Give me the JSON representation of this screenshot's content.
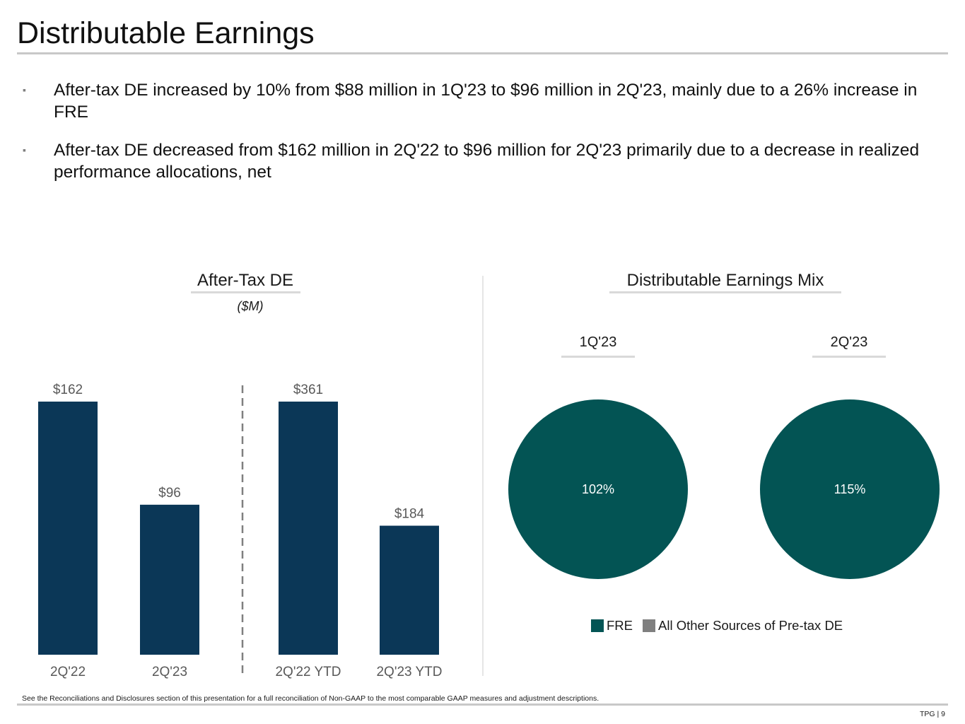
{
  "page": {
    "title": "Distributable Earnings",
    "bullets": [
      "After-tax DE increased by 10% from $88 million in 1Q'23 to $96 million in 2Q'23, mainly due to a 26% increase in FRE",
      "After-tax DE decreased from $162 million in 2Q'22 to $96 million for 2Q'23 primarily due to a decrease in realized performance allocations, net"
    ],
    "bullet_marker": "▪",
    "footnote": "See the Reconciliations and Disclosures section of this presentation for a full reconciliation of Non-GAAP to the most comparable GAAP measures and adjustment descriptions.",
    "page_number": "TPG | 9"
  },
  "colors": {
    "bar": "#0b3757",
    "fre": "#035454",
    "other": "#7f7f7f"
  },
  "chart_data": [
    {
      "type": "bar",
      "title": "After-Tax DE",
      "subtitle": "($M)",
      "categories": [
        "2Q'22",
        "2Q'23",
        "2Q'22 YTD",
        "2Q'23 YTD"
      ],
      "values": [
        162,
        96,
        361,
        184
      ],
      "value_labels": [
        "$162",
        "$96",
        "$361",
        "$184"
      ],
      "groups": [
        [
          "2Q'22",
          "2Q'23"
        ],
        [
          "2Q'22 YTD",
          "2Q'23 YTD"
        ]
      ],
      "group_scale_max": [
        162,
        361
      ],
      "separator": "dashed vertical line between groups",
      "xlabel": "",
      "ylabel": ""
    },
    {
      "type": "pie",
      "title": "Distributable Earnings Mix",
      "pies": [
        {
          "label": "1Q'23",
          "slices": [
            {
              "name": "FRE",
              "value": 102,
              "display": "102%"
            }
          ]
        },
        {
          "label": "2Q'23",
          "slices": [
            {
              "name": "FRE",
              "value": 115,
              "display": "115%"
            }
          ]
        }
      ],
      "legend": [
        "FRE",
        "All Other Sources of Pre-tax DE"
      ],
      "legend_placement": "bottom"
    }
  ]
}
